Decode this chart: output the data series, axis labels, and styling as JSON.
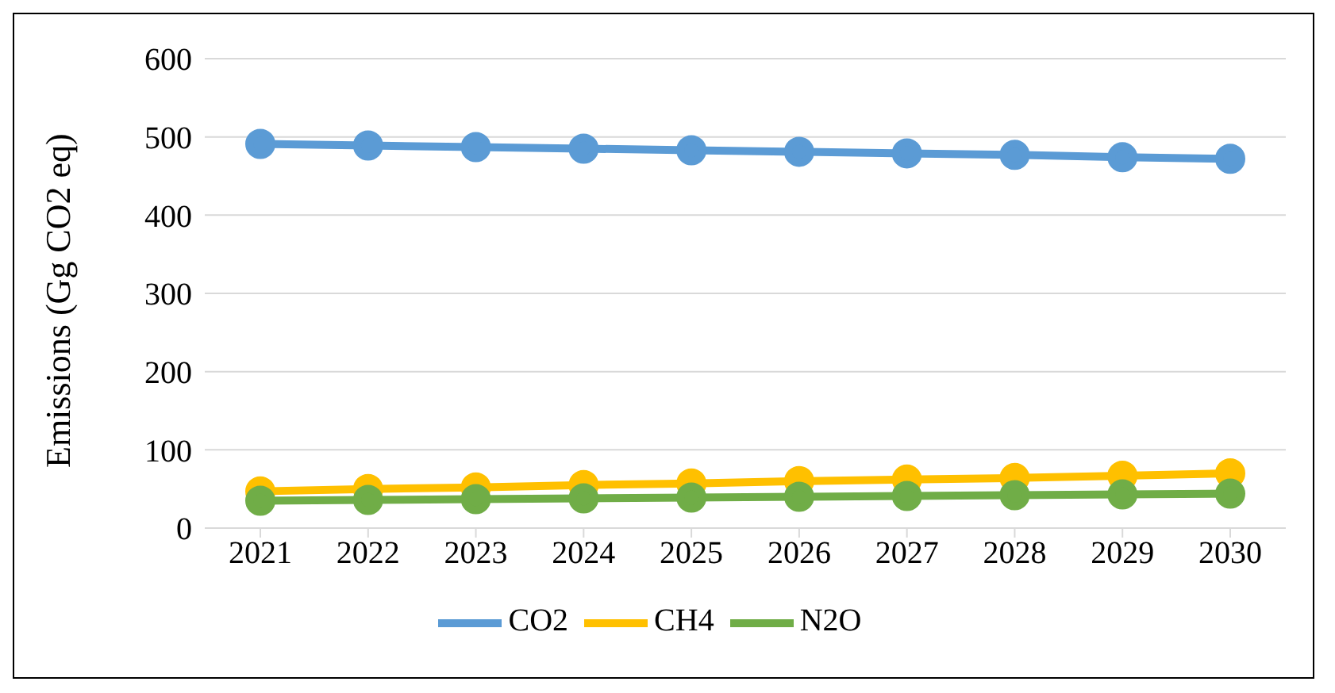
{
  "chart_data": {
    "type": "line",
    "ylabel": "Emissions (Gg CO2 eq)",
    "categories": [
      "2021",
      "2022",
      "2023",
      "2024",
      "2025",
      "2026",
      "2027",
      "2028",
      "2029",
      "2030"
    ],
    "series": [
      {
        "name": "CO2",
        "color": "#5b9bd5",
        "values": [
          491,
          489,
          487,
          485,
          483,
          481,
          479,
          477,
          474,
          472
        ]
      },
      {
        "name": "CH4",
        "color": "#ffc000",
        "values": [
          47,
          50,
          52,
          55,
          57,
          60,
          62,
          64,
          67,
          70
        ]
      },
      {
        "name": "N2O",
        "color": "#70ad47",
        "values": [
          35,
          36,
          37,
          38,
          39,
          40,
          41,
          42,
          43,
          44
        ]
      }
    ],
    "ylim": [
      0,
      600
    ],
    "yticks": [
      0,
      100,
      200,
      300,
      400,
      500,
      600
    ],
    "grid": "y",
    "legend": "bottom",
    "marker": "circle",
    "line_style": "solid"
  }
}
